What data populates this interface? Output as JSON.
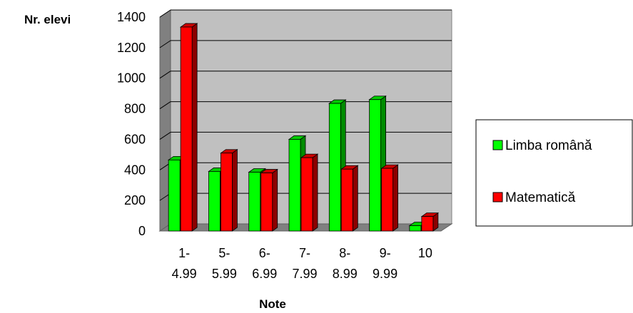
{
  "chart_data": {
    "type": "bar",
    "ylabel": "Nr. elevi",
    "xlabel": "Note",
    "ylim": [
      0,
      1400
    ],
    "yticks": [
      "0",
      "200",
      "400",
      "600",
      "800",
      "1000",
      "1200",
      "1400"
    ],
    "grid": true,
    "legend_position": "right",
    "categories": [
      [
        "1-",
        "4.99"
      ],
      [
        "5-",
        "5.99"
      ],
      [
        "6-",
        "6.99"
      ],
      [
        "7-",
        "7.99"
      ],
      [
        "8-",
        "8.99"
      ],
      [
        "9-",
        "9.99"
      ],
      [
        "10"
      ]
    ],
    "series": [
      {
        "name": "Limba română",
        "color": "#00ff00",
        "values": [
          465,
          390,
          385,
          600,
          835,
          860,
          35
        ]
      },
      {
        "name": "Matematică",
        "color": "#ff0000",
        "values": [
          1335,
          510,
          380,
          480,
          405,
          410,
          95
        ]
      }
    ]
  }
}
